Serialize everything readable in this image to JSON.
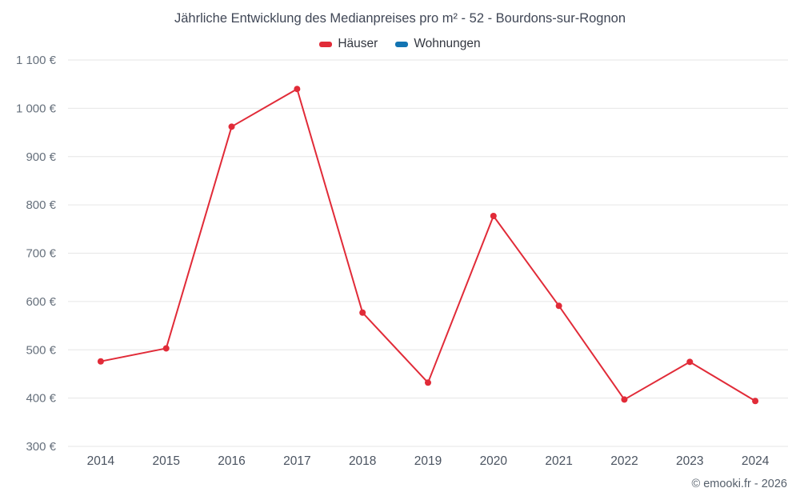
{
  "title": "Jährliche Entwicklung des Medianpreises pro m² - 52 - Bourdons-sur-Rognon",
  "legend": [
    {
      "label": "Häuser",
      "color": "#e12b38"
    },
    {
      "label": "Wohnungen",
      "color": "#1374b2"
    }
  ],
  "footer": "© emooki.fr - 2026",
  "chart_data": {
    "type": "line",
    "title": "Jährliche Entwicklung des Medianpreises pro m² - 52 - Bourdons-sur-Rognon",
    "x": [
      "2014",
      "2015",
      "2016",
      "2017",
      "2018",
      "2019",
      "2020",
      "2021",
      "2022",
      "2023",
      "2024"
    ],
    "series": [
      {
        "name": "Häuser",
        "color": "#e12b38",
        "values": [
          476,
          503,
          962,
          1040,
          577,
          432,
          777,
          591,
          397,
          475,
          394
        ]
      },
      {
        "name": "Wohnungen",
        "color": "#1374b2",
        "values": []
      }
    ],
    "ylim": [
      300,
      1100
    ],
    "ytick_step": 100,
    "yticks": [
      {
        "value": 300,
        "label": "300 €"
      },
      {
        "value": 400,
        "label": "400 €"
      },
      {
        "value": 500,
        "label": "500 €"
      },
      {
        "value": 600,
        "label": "600 €"
      },
      {
        "value": 700,
        "label": "700 €"
      },
      {
        "value": 800,
        "label": "800 €"
      },
      {
        "value": 900,
        "label": "900 €"
      },
      {
        "value": 1000,
        "label": "1 000 €"
      },
      {
        "value": 1100,
        "label": "1 100 €"
      }
    ],
    "xlabel": "",
    "ylabel": "",
    "currency": "€",
    "grid": "horizontal",
    "grid_color": "#e6e6e6",
    "axis_label_color": "#66707c",
    "legend_position": "top"
  }
}
